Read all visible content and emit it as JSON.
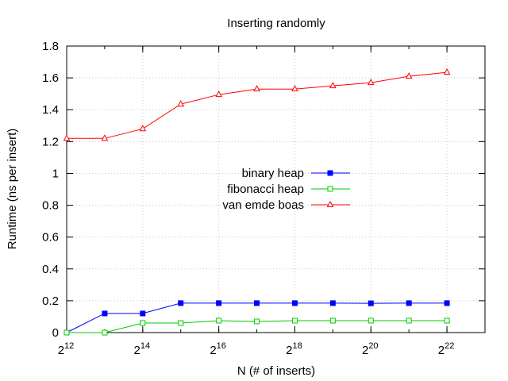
{
  "chart_data": {
    "type": "line",
    "title": "Inserting randomly",
    "xlabel": "N (# of inserts)",
    "ylabel": "Runtime (ns per insert)",
    "x_scale": "log2",
    "x": [
      4096,
      8192,
      16384,
      32768,
      65536,
      131072,
      262144,
      524288,
      1048576,
      2097152,
      4194304
    ],
    "xlim": [
      4096,
      8388608
    ],
    "ylim": [
      0,
      1.8
    ],
    "y_ticks": [
      "0",
      "0.2",
      "0.4",
      "0.6",
      "0.8",
      "1",
      "1.2",
      "1.4",
      "1.6",
      "1.8"
    ],
    "x_ticks": [
      {
        "base": "2",
        "exp": "12",
        "value": 4096
      },
      {
        "base": "2",
        "exp": "14",
        "value": 16384
      },
      {
        "base": "2",
        "exp": "16",
        "value": 65536
      },
      {
        "base": "2",
        "exp": "18",
        "value": 262144
      },
      {
        "base": "2",
        "exp": "20",
        "value": 1048576
      },
      {
        "base": "2",
        "exp": "22",
        "value": 4194304
      }
    ],
    "grid": true,
    "legend_position": "center",
    "series": [
      {
        "name": "binary heap",
        "color": "#0000ff",
        "marker": "filled-square",
        "values": [
          0.0,
          0.12,
          0.12,
          0.185,
          0.185,
          0.185,
          0.185,
          0.185,
          0.184,
          0.185,
          0.185
        ]
      },
      {
        "name": "fibonacci heap",
        "color": "#00cc00",
        "marker": "open-square",
        "values": [
          0.0,
          0.0,
          0.06,
          0.06,
          0.075,
          0.07,
          0.075,
          0.075,
          0.075,
          0.075,
          0.075
        ]
      },
      {
        "name": "van emde boas",
        "color": "#ff0000",
        "marker": "open-triangle",
        "values": [
          1.22,
          1.22,
          1.28,
          1.435,
          1.495,
          1.53,
          1.53,
          1.55,
          1.57,
          1.61,
          1.635
        ]
      }
    ]
  }
}
